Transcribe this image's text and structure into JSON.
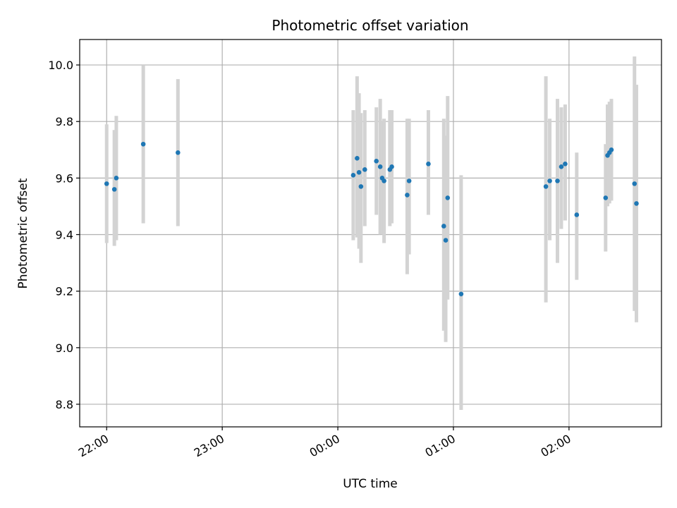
{
  "chart_data": {
    "type": "scatter",
    "title": "Photometric offset variation",
    "xlabel": "UTC time",
    "ylabel": "Photometric offset",
    "x_axis": "time",
    "x_ticks": [
      "22:00",
      "23:00",
      "00:00",
      "01:00",
      "02:00"
    ],
    "xlim": [
      "21:46",
      "26:48"
    ],
    "ylim": [
      8.72,
      10.09
    ],
    "y_ticks": [
      "8.8",
      "9.0",
      "9.2",
      "9.4",
      "9.6",
      "9.8",
      "10.0"
    ],
    "grid": true,
    "marker_color": "#1f77b4",
    "errorbar_color": "#d3d3d3",
    "series": [
      {
        "points": [
          {
            "t": "22:00",
            "y": 9.58,
            "lo": 9.37,
            "hi": 9.79
          },
          {
            "t": "22:04",
            "y": 9.56,
            "lo": 9.36,
            "hi": 9.77
          },
          {
            "t": "22:05",
            "y": 9.6,
            "lo": 9.38,
            "hi": 9.82
          },
          {
            "t": "22:19",
            "y": 9.72,
            "lo": 9.44,
            "hi": 10.0
          },
          {
            "t": "22:37",
            "y": 9.69,
            "lo": 9.43,
            "hi": 9.95
          },
          {
            "t": "00:08",
            "y": 9.61,
            "lo": 9.38,
            "hi": 9.84
          },
          {
            "t": "00:10",
            "y": 9.67,
            "lo": 9.39,
            "hi": 9.96
          },
          {
            "t": "00:11",
            "y": 9.62,
            "lo": 9.35,
            "hi": 9.9
          },
          {
            "t": "00:12",
            "y": 9.57,
            "lo": 9.3,
            "hi": 9.83
          },
          {
            "t": "00:14",
            "y": 9.63,
            "lo": 9.43,
            "hi": 9.84
          },
          {
            "t": "00:20",
            "y": 9.66,
            "lo": 9.47,
            "hi": 9.85
          },
          {
            "t": "00:22",
            "y": 9.64,
            "lo": 9.4,
            "hi": 9.88
          },
          {
            "t": "00:23",
            "y": 9.6,
            "lo": 9.4,
            "hi": 9.8
          },
          {
            "t": "00:24",
            "y": 9.59,
            "lo": 9.37,
            "hi": 9.81
          },
          {
            "t": "00:27",
            "y": 9.63,
            "lo": 9.43,
            "hi": 9.84
          },
          {
            "t": "00:28",
            "y": 9.64,
            "lo": 9.44,
            "hi": 9.84
          },
          {
            "t": "00:36",
            "y": 9.54,
            "lo": 9.26,
            "hi": 9.81
          },
          {
            "t": "00:37",
            "y": 9.59,
            "lo": 9.33,
            "hi": 9.81
          },
          {
            "t": "00:47",
            "y": 9.65,
            "lo": 9.47,
            "hi": 9.84
          },
          {
            "t": "00:55",
            "y": 9.43,
            "lo": 9.06,
            "hi": 9.81
          },
          {
            "t": "00:56",
            "y": 9.38,
            "lo": 9.02,
            "hi": 9.75
          },
          {
            "t": "00:57",
            "y": 9.53,
            "lo": 9.17,
            "hi": 9.89
          },
          {
            "t": "01:04",
            "y": 9.19,
            "lo": 8.78,
            "hi": 9.61
          },
          {
            "t": "01:48",
            "y": 9.57,
            "lo": 9.16,
            "hi": 9.96
          },
          {
            "t": "01:50",
            "y": 9.59,
            "lo": 9.38,
            "hi": 9.81
          },
          {
            "t": "01:54",
            "y": 9.59,
            "lo": 9.3,
            "hi": 9.88
          },
          {
            "t": "01:56",
            "y": 9.64,
            "lo": 9.42,
            "hi": 9.85
          },
          {
            "t": "01:58",
            "y": 9.65,
            "lo": 9.45,
            "hi": 9.86
          },
          {
            "t": "02:04",
            "y": 9.47,
            "lo": 9.24,
            "hi": 9.69
          },
          {
            "t": "02:19",
            "y": 9.53,
            "lo": 9.34,
            "hi": 9.72
          },
          {
            "t": "02:20",
            "y": 9.68,
            "lo": 9.5,
            "hi": 9.86
          },
          {
            "t": "02:21",
            "y": 9.69,
            "lo": 9.51,
            "hi": 9.87
          },
          {
            "t": "02:22",
            "y": 9.7,
            "lo": 9.52,
            "hi": 9.88
          },
          {
            "t": "02:34",
            "y": 9.58,
            "lo": 9.13,
            "hi": 10.03
          },
          {
            "t": "02:35",
            "y": 9.51,
            "lo": 9.09,
            "hi": 9.93
          }
        ]
      }
    ]
  }
}
